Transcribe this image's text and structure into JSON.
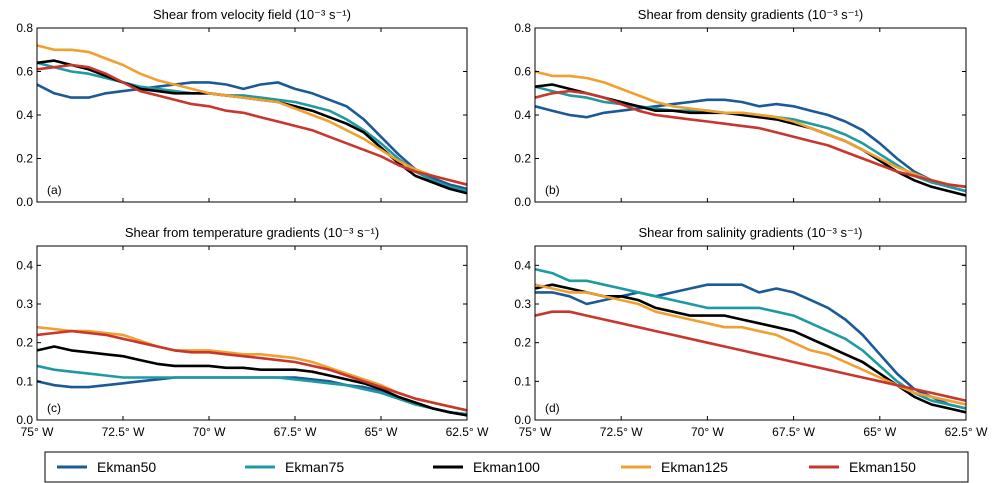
{
  "legend": {
    "entries": [
      {
        "name": "Ekman50",
        "color": "#1b5a96"
      },
      {
        "name": "Ekman75",
        "color": "#1f9aa2"
      },
      {
        "name": "Ekman100",
        "color": "#000000"
      },
      {
        "name": "Ekman125",
        "color": "#f0a030"
      },
      {
        "name": "Ekman150",
        "color": "#c8372d"
      }
    ]
  },
  "chart_data": [
    {
      "type": "line",
      "title": "Shear from velocity field (10⁻³ s⁻¹)",
      "panel_label": "(a)",
      "x_axis": {
        "label": "",
        "ticks": [
          "75° W",
          "72.5° W",
          "70° W",
          "67.5° W",
          "65° W",
          "62.5° W"
        ],
        "range": [
          -75,
          -62.5
        ]
      },
      "y_axis": {
        "label": "",
        "ticks": [
          "0.0",
          "0.2",
          "0.4",
          "0.6",
          "0.8"
        ],
        "range": [
          0,
          0.8
        ]
      },
      "x": [
        -75,
        -74.5,
        -74,
        -73.5,
        -73,
        -72.5,
        -72,
        -71.5,
        -71,
        -70.5,
        -70,
        -69.5,
        -69,
        -68.5,
        -68,
        -67.5,
        -67,
        -66.5,
        -66,
        -65.5,
        -65,
        -64.5,
        -64,
        -63.5,
        -63,
        -62.5
      ],
      "series": [
        {
          "name": "Ekman50",
          "values": [
            0.54,
            0.5,
            0.48,
            0.48,
            0.5,
            0.51,
            0.52,
            0.53,
            0.54,
            0.55,
            0.55,
            0.54,
            0.52,
            0.54,
            0.55,
            0.52,
            0.5,
            0.47,
            0.44,
            0.38,
            0.3,
            0.22,
            0.15,
            0.11,
            0.08,
            0.06
          ]
        },
        {
          "name": "Ekman75",
          "values": [
            0.64,
            0.62,
            0.6,
            0.59,
            0.57,
            0.55,
            0.53,
            0.52,
            0.51,
            0.5,
            0.5,
            0.49,
            0.49,
            0.48,
            0.47,
            0.46,
            0.44,
            0.42,
            0.38,
            0.33,
            0.27,
            0.2,
            0.14,
            0.1,
            0.07,
            0.05
          ]
        },
        {
          "name": "Ekman100",
          "values": [
            0.64,
            0.65,
            0.63,
            0.61,
            0.58,
            0.55,
            0.52,
            0.51,
            0.5,
            0.5,
            0.5,
            0.49,
            0.48,
            0.47,
            0.46,
            0.44,
            0.42,
            0.39,
            0.36,
            0.32,
            0.25,
            0.18,
            0.12,
            0.09,
            0.06,
            0.04
          ]
        },
        {
          "name": "Ekman125",
          "values": [
            0.72,
            0.7,
            0.7,
            0.69,
            0.66,
            0.63,
            0.59,
            0.56,
            0.54,
            0.52,
            0.5,
            0.49,
            0.48,
            0.47,
            0.46,
            0.43,
            0.4,
            0.37,
            0.33,
            0.29,
            0.24,
            0.19,
            0.15,
            0.12,
            0.1,
            0.08
          ]
        },
        {
          "name": "Ekman150",
          "values": [
            0.61,
            0.62,
            0.63,
            0.62,
            0.59,
            0.55,
            0.51,
            0.49,
            0.47,
            0.45,
            0.44,
            0.42,
            0.41,
            0.39,
            0.37,
            0.35,
            0.33,
            0.3,
            0.27,
            0.24,
            0.21,
            0.17,
            0.14,
            0.12,
            0.1,
            0.08
          ]
        }
      ]
    },
    {
      "type": "line",
      "title": "Shear from density gradients (10⁻³ s⁻¹)",
      "panel_label": "(b)",
      "x_axis": {
        "label": "",
        "ticks": [
          "75° W",
          "72.5° W",
          "70° W",
          "67.5° W",
          "65° W",
          "62.5° W"
        ],
        "range": [
          -75,
          -62.5
        ]
      },
      "y_axis": {
        "label": "",
        "ticks": [
          "0.0",
          "0.2",
          "0.4",
          "0.6",
          "0.8"
        ],
        "range": [
          0,
          0.8
        ]
      },
      "x": [
        -75,
        -74.5,
        -74,
        -73.5,
        -73,
        -72.5,
        -72,
        -71.5,
        -71,
        -70.5,
        -70,
        -69.5,
        -69,
        -68.5,
        -68,
        -67.5,
        -67,
        -66.5,
        -66,
        -65.5,
        -65,
        -64.5,
        -64,
        -63.5,
        -63,
        -62.5
      ],
      "series": [
        {
          "name": "Ekman50",
          "values": [
            0.44,
            0.42,
            0.4,
            0.39,
            0.41,
            0.42,
            0.43,
            0.44,
            0.45,
            0.46,
            0.47,
            0.47,
            0.46,
            0.44,
            0.45,
            0.44,
            0.42,
            0.4,
            0.37,
            0.33,
            0.27,
            0.2,
            0.14,
            0.1,
            0.07,
            0.05
          ]
        },
        {
          "name": "Ekman75",
          "values": [
            0.53,
            0.51,
            0.49,
            0.48,
            0.46,
            0.45,
            0.44,
            0.43,
            0.42,
            0.42,
            0.42,
            0.41,
            0.41,
            0.4,
            0.39,
            0.38,
            0.36,
            0.34,
            0.31,
            0.27,
            0.22,
            0.17,
            0.12,
            0.09,
            0.07,
            0.05
          ]
        },
        {
          "name": "Ekman100",
          "values": [
            0.53,
            0.54,
            0.52,
            0.5,
            0.48,
            0.46,
            0.44,
            0.42,
            0.42,
            0.41,
            0.41,
            0.41,
            0.4,
            0.39,
            0.38,
            0.36,
            0.34,
            0.31,
            0.28,
            0.24,
            0.19,
            0.14,
            0.1,
            0.07,
            0.05,
            0.03
          ]
        },
        {
          "name": "Ekman125",
          "values": [
            0.6,
            0.58,
            0.58,
            0.57,
            0.55,
            0.52,
            0.49,
            0.46,
            0.44,
            0.43,
            0.42,
            0.41,
            0.41,
            0.4,
            0.39,
            0.37,
            0.34,
            0.31,
            0.28,
            0.24,
            0.2,
            0.16,
            0.13,
            0.1,
            0.08,
            0.07
          ]
        },
        {
          "name": "Ekman150",
          "values": [
            0.48,
            0.5,
            0.51,
            0.5,
            0.48,
            0.45,
            0.42,
            0.4,
            0.39,
            0.38,
            0.37,
            0.36,
            0.35,
            0.34,
            0.32,
            0.3,
            0.28,
            0.26,
            0.23,
            0.2,
            0.17,
            0.14,
            0.12,
            0.1,
            0.08,
            0.07
          ]
        }
      ]
    },
    {
      "type": "line",
      "title": "Shear from temperature gradients (10⁻³ s⁻¹)",
      "panel_label": "(c)",
      "x_axis": {
        "label": "",
        "ticks": [
          "75° W",
          "72.5° W",
          "70° W",
          "67.5° W",
          "65° W",
          "62.5° W"
        ],
        "range": [
          -75,
          -62.5
        ]
      },
      "y_axis": {
        "label": "",
        "ticks": [
          "0.0",
          "0.1",
          "0.2",
          "0.3",
          "0.4"
        ],
        "range": [
          0,
          0.45
        ]
      },
      "x": [
        -75,
        -74.5,
        -74,
        -73.5,
        -73,
        -72.5,
        -72,
        -71.5,
        -71,
        -70.5,
        -70,
        -69.5,
        -69,
        -68.5,
        -68,
        -67.5,
        -67,
        -66.5,
        -66,
        -65.5,
        -65,
        -64.5,
        -64,
        -63.5,
        -63,
        -62.5
      ],
      "series": [
        {
          "name": "Ekman50",
          "values": [
            0.1,
            0.09,
            0.085,
            0.085,
            0.09,
            0.095,
            0.1,
            0.105,
            0.11,
            0.11,
            0.11,
            0.11,
            0.11,
            0.11,
            0.11,
            0.11,
            0.105,
            0.1,
            0.09,
            0.085,
            0.075,
            0.06,
            0.045,
            0.03,
            0.02,
            0.015
          ]
        },
        {
          "name": "Ekman75",
          "values": [
            0.14,
            0.13,
            0.125,
            0.12,
            0.115,
            0.11,
            0.11,
            0.11,
            0.11,
            0.11,
            0.11,
            0.11,
            0.11,
            0.11,
            0.11,
            0.105,
            0.1,
            0.095,
            0.09,
            0.08,
            0.07,
            0.055,
            0.04,
            0.03,
            0.02,
            0.015
          ]
        },
        {
          "name": "Ekman100",
          "values": [
            0.18,
            0.19,
            0.18,
            0.175,
            0.17,
            0.165,
            0.155,
            0.145,
            0.14,
            0.14,
            0.14,
            0.135,
            0.135,
            0.13,
            0.13,
            0.13,
            0.125,
            0.115,
            0.105,
            0.095,
            0.08,
            0.06,
            0.045,
            0.03,
            0.02,
            0.012
          ]
        },
        {
          "name": "Ekman125",
          "values": [
            0.24,
            0.235,
            0.23,
            0.23,
            0.225,
            0.22,
            0.205,
            0.19,
            0.18,
            0.18,
            0.18,
            0.175,
            0.17,
            0.17,
            0.165,
            0.16,
            0.15,
            0.135,
            0.12,
            0.105,
            0.09,
            0.07,
            0.055,
            0.045,
            0.035,
            0.025
          ]
        },
        {
          "name": "Ekman150",
          "values": [
            0.22,
            0.225,
            0.23,
            0.225,
            0.22,
            0.21,
            0.2,
            0.19,
            0.18,
            0.175,
            0.175,
            0.17,
            0.165,
            0.16,
            0.155,
            0.15,
            0.14,
            0.13,
            0.115,
            0.1,
            0.085,
            0.07,
            0.055,
            0.045,
            0.035,
            0.025
          ]
        }
      ]
    },
    {
      "type": "line",
      "title": "Shear from salinity gradients (10⁻³ s⁻¹)",
      "panel_label": "(d)",
      "x_axis": {
        "label": "",
        "ticks": [
          "75° W",
          "72.5° W",
          "70° W",
          "67.5° W",
          "65° W",
          "62.5° W"
        ],
        "range": [
          -75,
          -62.5
        ]
      },
      "y_axis": {
        "label": "",
        "ticks": [
          "0.0",
          "0.1",
          "0.2",
          "0.3",
          "0.4"
        ],
        "range": [
          0,
          0.45
        ]
      },
      "x": [
        -75,
        -74.5,
        -74,
        -73.5,
        -73,
        -72.5,
        -72,
        -71.5,
        -71,
        -70.5,
        -70,
        -69.5,
        -69,
        -68.5,
        -68,
        -67.5,
        -67,
        -66.5,
        -66,
        -65.5,
        -65,
        -64.5,
        -64,
        -63.5,
        -63,
        -62.5
      ],
      "series": [
        {
          "name": "Ekman50",
          "values": [
            0.33,
            0.33,
            0.32,
            0.3,
            0.31,
            0.32,
            0.33,
            0.32,
            0.33,
            0.34,
            0.35,
            0.35,
            0.35,
            0.33,
            0.34,
            0.33,
            0.31,
            0.29,
            0.26,
            0.22,
            0.17,
            0.12,
            0.08,
            0.06,
            0.04,
            0.03
          ]
        },
        {
          "name": "Ekman75",
          "values": [
            0.39,
            0.38,
            0.36,
            0.36,
            0.35,
            0.34,
            0.33,
            0.32,
            0.31,
            0.3,
            0.29,
            0.29,
            0.29,
            0.29,
            0.28,
            0.27,
            0.25,
            0.23,
            0.21,
            0.18,
            0.14,
            0.1,
            0.07,
            0.05,
            0.04,
            0.03
          ]
        },
        {
          "name": "Ekman100",
          "values": [
            0.34,
            0.35,
            0.34,
            0.33,
            0.32,
            0.32,
            0.31,
            0.29,
            0.28,
            0.27,
            0.27,
            0.27,
            0.26,
            0.25,
            0.24,
            0.23,
            0.21,
            0.19,
            0.17,
            0.15,
            0.12,
            0.09,
            0.06,
            0.04,
            0.03,
            0.02
          ]
        },
        {
          "name": "Ekman125",
          "values": [
            0.35,
            0.34,
            0.33,
            0.33,
            0.32,
            0.31,
            0.3,
            0.28,
            0.27,
            0.26,
            0.25,
            0.24,
            0.24,
            0.23,
            0.22,
            0.2,
            0.18,
            0.17,
            0.15,
            0.13,
            0.11,
            0.09,
            0.07,
            0.06,
            0.05,
            0.04
          ]
        },
        {
          "name": "Ekman150",
          "values": [
            0.27,
            0.28,
            0.28,
            0.27,
            0.26,
            0.25,
            0.24,
            0.23,
            0.22,
            0.21,
            0.2,
            0.19,
            0.18,
            0.17,
            0.16,
            0.15,
            0.14,
            0.13,
            0.12,
            0.11,
            0.1,
            0.09,
            0.08,
            0.07,
            0.06,
            0.05
          ]
        }
      ]
    }
  ]
}
